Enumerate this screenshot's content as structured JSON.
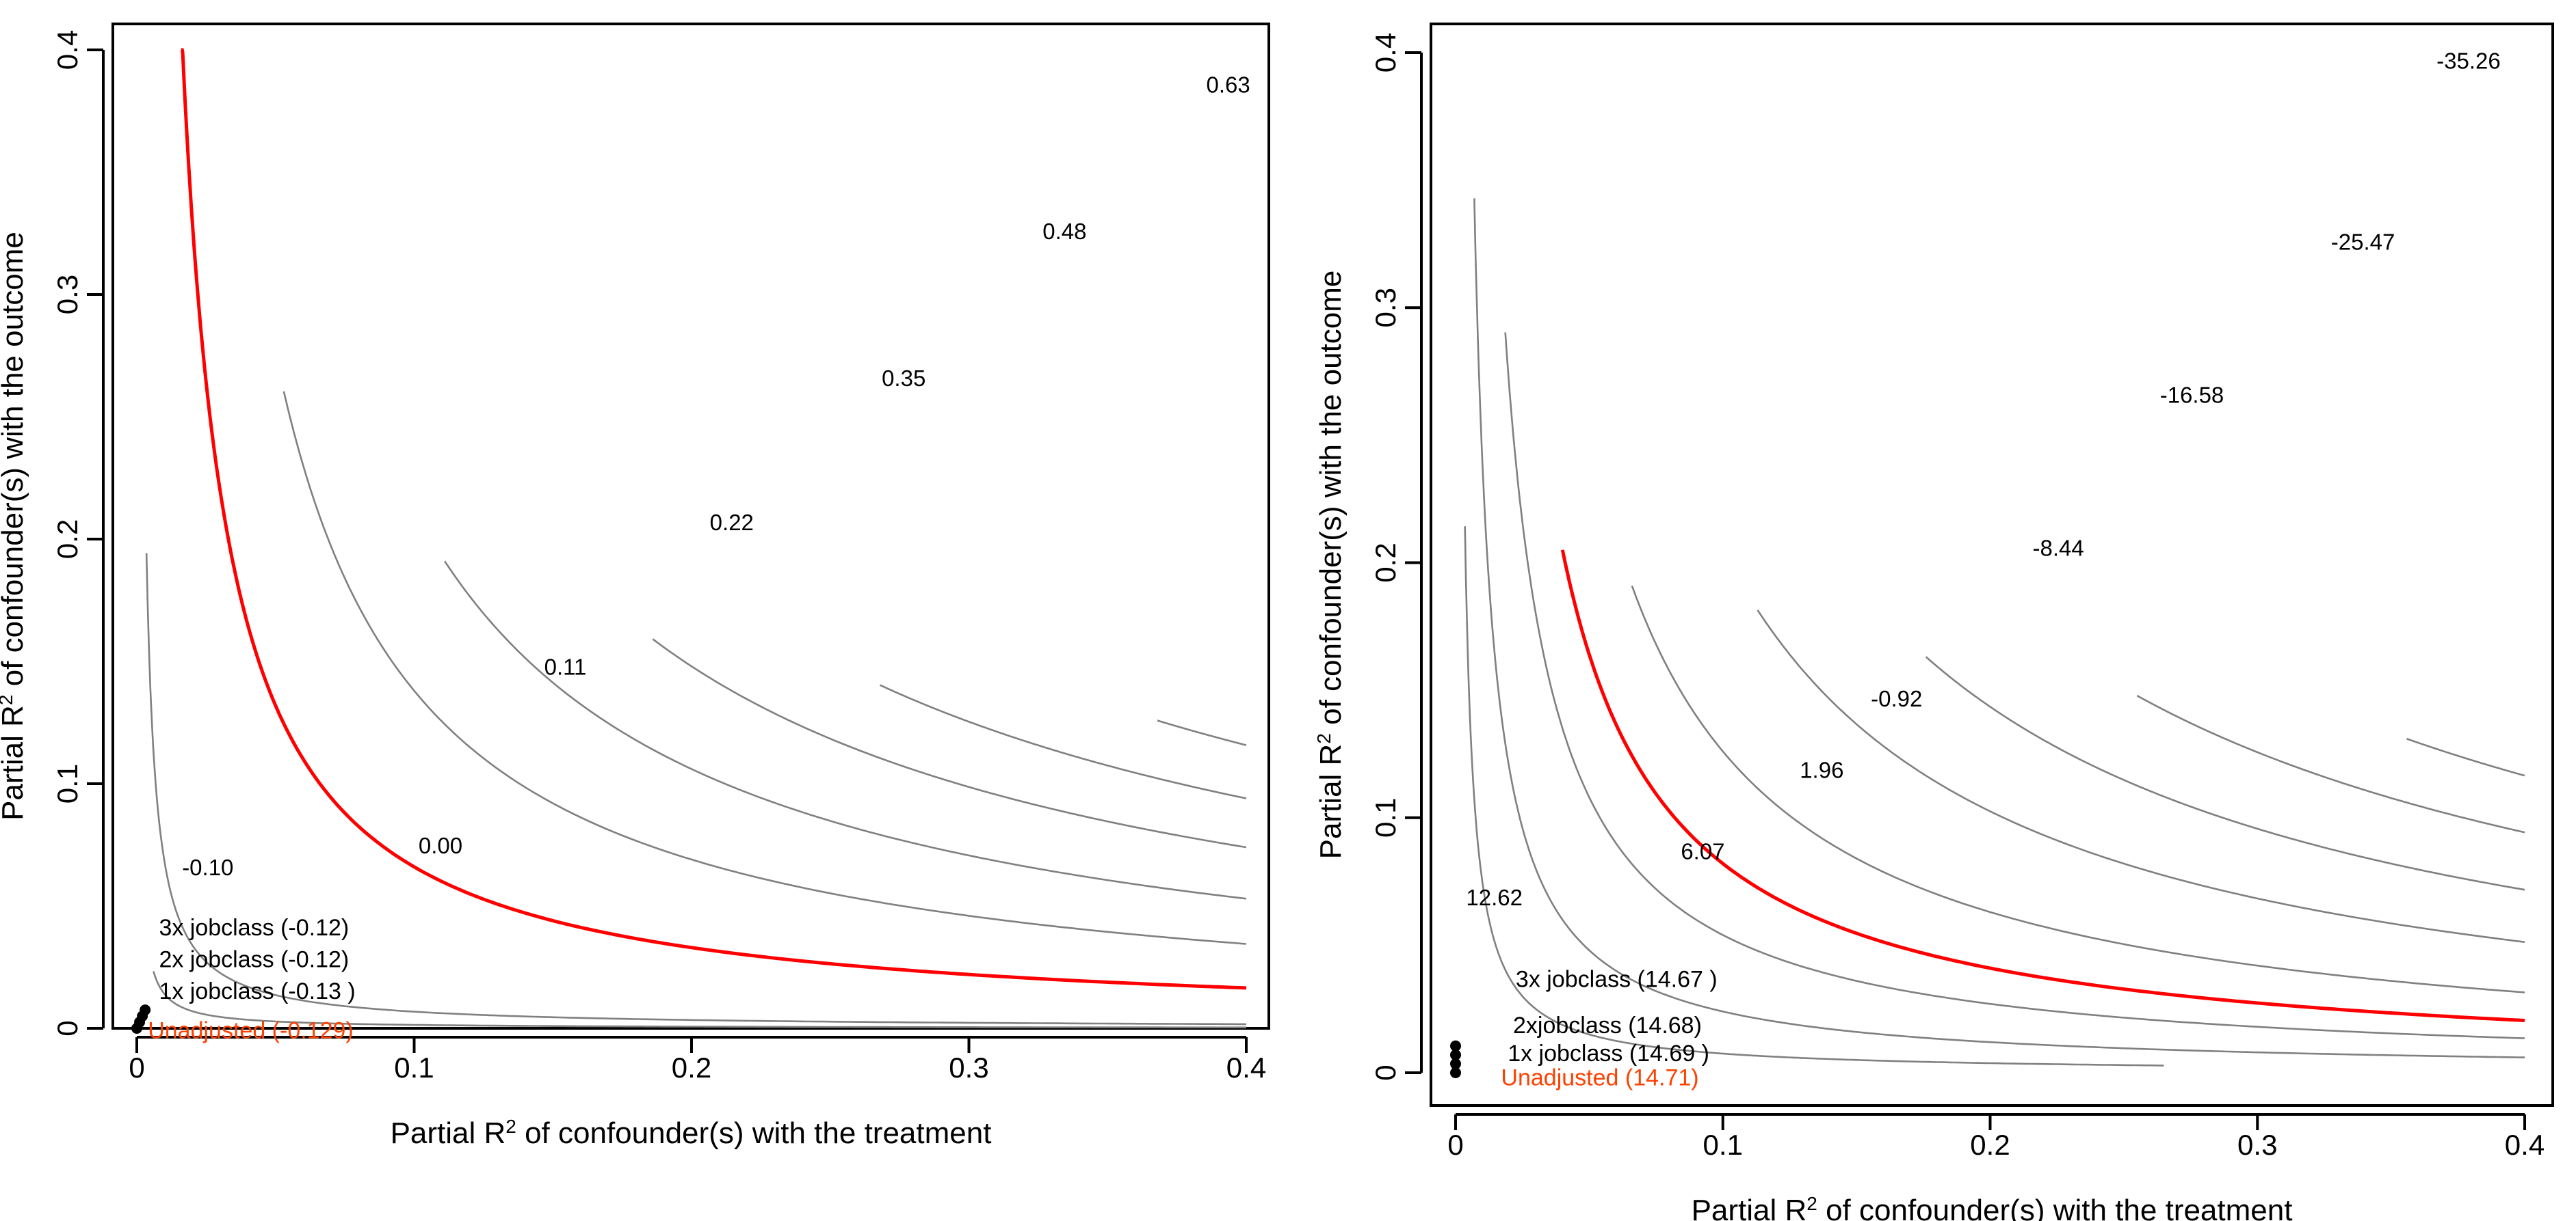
{
  "chart_data": [
    {
      "type": "contour",
      "title": "",
      "xlabel_parts": [
        "Partial R",
        "2",
        " of confounder(s) with the treatment"
      ],
      "ylabel_parts": [
        "Partial R",
        "2",
        " of confounder(s) with the outcome"
      ],
      "xlim": [
        0,
        0.4
      ],
      "ylim": [
        0,
        0.4
      ],
      "x_ticks": [
        0,
        0.1,
        0.2,
        0.3,
        0.4
      ],
      "x_tick_labels": [
        "0",
        "0.1",
        "0.2",
        "0.3",
        "0.4"
      ],
      "y_ticks": [
        0,
        0.1,
        0.2,
        0.3,
        0.4
      ],
      "y_tick_labels": [
        "0",
        "0.1",
        "0.2",
        "0.3",
        "0.4"
      ],
      "threshold_color": "#ff0000",
      "contour_color": "#808080",
      "contours": [
        {
          "label": "-0.10",
          "label_at": [
            0.0256,
            0.065
          ],
          "k": 0.00068,
          "xstart": 0.0035,
          "xend": 0.4
        },
        {
          "label": "0.00",
          "label_at": [
            0.1095,
            0.074
          ],
          "threshold": true,
          "k": 0.0066,
          "xstart": 0.016,
          "xend": 0.4
        },
        {
          "label": "0.11",
          "label_at": [
            0.1545,
            0.147
          ],
          "k": 0.0138,
          "xstart": 0.053,
          "xend": 0.4
        },
        {
          "label": "0.22",
          "label_at": [
            0.2145,
            0.206
          ],
          "k": 0.0212,
          "xstart": 0.111,
          "xend": 0.4
        },
        {
          "label": "0.35",
          "label_at": [
            0.2765,
            0.265
          ],
          "k": 0.0296,
          "xstart": 0.186,
          "xend": 0.4
        },
        {
          "label": "0.48",
          "label_at": [
            0.3345,
            0.325
          ],
          "k": 0.0376,
          "xstart": 0.268,
          "xend": 0.4
        },
        {
          "label": "0.63",
          "label_at": [
            0.3935,
            0.385
          ],
          "k": 0.0463,
          "xstart": 0.368,
          "xend": 0.4
        },
        {
          "label": "",
          "k": 0.00014,
          "xstart": 0.006,
          "xend": 0.4
        }
      ],
      "points": [
        {
          "label": "Unadjusted (-0.129)",
          "x": 0.0,
          "y": 0.0,
          "adjusted": false,
          "label_at": [
            0.004,
            -0.0015
          ]
        },
        {
          "label": "1x jobclass (-0.13 )",
          "x": 0.001,
          "y": 0.0025,
          "adjusted": true,
          "label_at": [
            0.008,
            0.0145
          ]
        },
        {
          "label": "2x jobclass (-0.12)",
          "x": 0.002,
          "y": 0.005,
          "adjusted": true,
          "label_at": [
            0.008,
            0.0275
          ]
        },
        {
          "label": "3x jobclass (-0.12)",
          "x": 0.003,
          "y": 0.0075,
          "adjusted": true,
          "label_at": [
            0.008,
            0.0405
          ]
        }
      ]
    },
    {
      "type": "contour",
      "title": "",
      "xlabel_parts": [
        "Partial R",
        "2",
        " of confounder(s) with the treatment"
      ],
      "ylabel_parts": [
        "Partial R",
        "2",
        " of confounder(s) with the outcome"
      ],
      "xlim": [
        0,
        0.4
      ],
      "ylim": [
        0,
        0.4
      ],
      "x_ticks": [
        0,
        0.1,
        0.2,
        0.3,
        0.4
      ],
      "x_tick_labels": [
        "0",
        "0.1",
        "0.2",
        "0.3",
        "0.4"
      ],
      "y_ticks": [
        0,
        0.1,
        0.2,
        0.3,
        0.4
      ],
      "y_tick_labels": [
        "0",
        "0.1",
        "0.2",
        "0.3",
        "0.4"
      ],
      "threshold_color": "#ff0000",
      "contour_color": "#808080",
      "contours": [
        {
          "label": "12.62",
          "label_at": [
            0.0145,
            0.068
          ],
          "k": 0.0024,
          "xstart": 0.007,
          "xend": 0.4
        },
        {
          "label": "6.07",
          "label_at": [
            0.0925,
            0.086
          ],
          "k": 0.0054,
          "xstart": 0.0186,
          "xend": 0.4
        },
        {
          "label": "1.96",
          "label_at": [
            0.137,
            0.118
          ],
          "threshold": true,
          "k": 0.0082,
          "xstart": 0.04,
          "xend": 0.4
        },
        {
          "label": "-0.92",
          "label_at": [
            0.165,
            0.146
          ],
          "k": 0.0126,
          "xstart": 0.066,
          "xend": 0.4
        },
        {
          "label": "-8.44",
          "label_at": [
            0.2255,
            0.205
          ],
          "k": 0.0205,
          "xstart": 0.113,
          "xend": 0.4
        },
        {
          "label": "-16.58",
          "label_at": [
            0.2755,
            0.265
          ],
          "k": 0.0287,
          "xstart": 0.176,
          "xend": 0.4
        },
        {
          "label": "-25.47",
          "label_at": [
            0.3395,
            0.325
          ],
          "k": 0.0377,
          "xstart": 0.255,
          "xend": 0.4
        },
        {
          "label": "-35.26",
          "label_at": [
            0.379,
            0.396
          ],
          "k": 0.0466,
          "xstart": 0.356,
          "xend": 0.4
        },
        {
          "label": "",
          "k": 0.00075,
          "xstart": 0.0035,
          "xend": 0.265
        }
      ],
      "points": [
        {
          "label": "Unadjusted (14.71)",
          "x": 0.0,
          "y": 0.0,
          "adjusted": false,
          "label_at": [
            0.017,
            -0.0025
          ]
        },
        {
          "label": "1x jobclass (14.69 )",
          "x": 0.0,
          "y": 0.0035,
          "adjusted": true,
          "label_at": [
            0.0195,
            0.007
          ]
        },
        {
          "label": "2xjobclass (14.68)",
          "x": 0.0,
          "y": 0.007,
          "adjusted": true,
          "label_at": [
            0.0215,
            0.018
          ]
        },
        {
          "label": "3x jobclass (14.67 )",
          "x": 0.0,
          "y": 0.0105,
          "adjusted": true,
          "label_at": [
            0.0225,
            0.036
          ]
        }
      ]
    }
  ]
}
